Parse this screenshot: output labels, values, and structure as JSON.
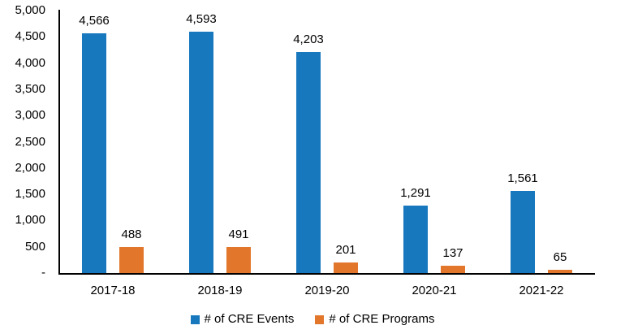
{
  "chart_data": {
    "type": "bar",
    "title": "",
    "categories": [
      "2017-18",
      "2018-19",
      "2019-20",
      "2020-21",
      "2021-22"
    ],
    "series": [
      {
        "name": "# of CRE Events",
        "color": "#1878BE",
        "values": [
          4566,
          4593,
          4203,
          1291,
          1561
        ],
        "value_labels": [
          "4,566",
          "4,593",
          "4,203",
          "1,291",
          "1,561"
        ]
      },
      {
        "name": "# of CRE Programs",
        "color": "#E2762B",
        "values": [
          488,
          491,
          201,
          137,
          65
        ],
        "value_labels": [
          "488",
          "491",
          "201",
          "137",
          "65"
        ]
      }
    ],
    "y_axis": {
      "min": 0,
      "max": 5000,
      "step": 500,
      "tick_labels": [
        "-",
        "500",
        "1,000",
        "1,500",
        "2,000",
        "2,500",
        "3,000",
        "3,500",
        "4,000",
        "4,500",
        "5,000"
      ]
    },
    "axis_color": "#000000",
    "text_color": "#000000",
    "background_color": "#FFFFFF",
    "grid": false,
    "legend_position": "bottom"
  }
}
